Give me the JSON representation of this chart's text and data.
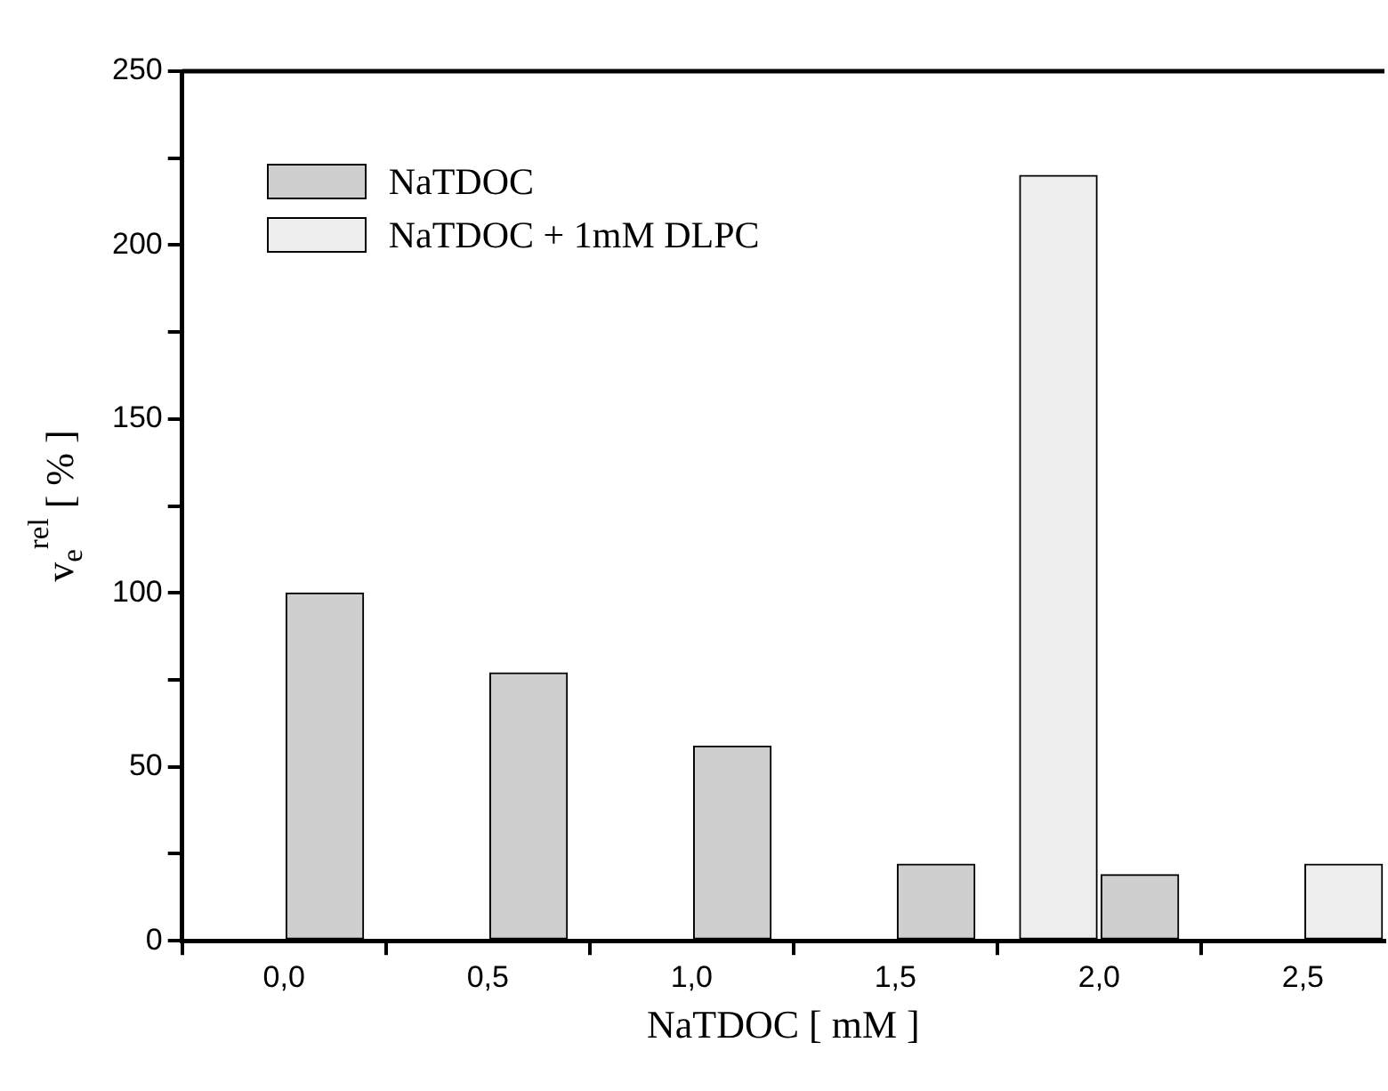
{
  "chart_data": {
    "type": "bar",
    "xlabel": "NaTDOC [ mM ]",
    "ylabel": "v$_{e}$$^{rel}$ [ % ]",
    "series": [
      {
        "name": "NaTDOC",
        "color": "#cfcfcf",
        "x": [
          0.1,
          0.6,
          1.1,
          1.6,
          2.1
        ],
        "values": [
          100,
          77,
          56,
          22,
          19
        ]
      },
      {
        "name": "NaTDOC + 1mM DLPC",
        "color": "#eeeeee",
        "x": [
          1.9,
          2.6
        ],
        "values": [
          220,
          22
        ]
      }
    ],
    "xlim": [
      -0.25,
      2.7
    ],
    "xticks": [
      {
        "value": 0,
        "label": "0,0"
      },
      {
        "value": 0.5,
        "label": "0,5"
      },
      {
        "value": 1,
        "label": "1,0"
      },
      {
        "value": 1.5,
        "label": "1,5"
      },
      {
        "value": 2,
        "label": "2,0"
      },
      {
        "value": 2.5,
        "label": "2,5"
      }
    ],
    "ylim": [
      0,
      250
    ],
    "yticks": [
      0,
      {
        "value": 25,
        "label": null
      },
      50,
      {
        "value": 75,
        "label": null
      },
      100,
      {
        "value": 125,
        "label": null
      },
      150,
      {
        "value": 175,
        "label": null
      },
      200,
      {
        "value": 225,
        "label": null
      },
      250
    ],
    "legend": "top left",
    "grid": false
  }
}
